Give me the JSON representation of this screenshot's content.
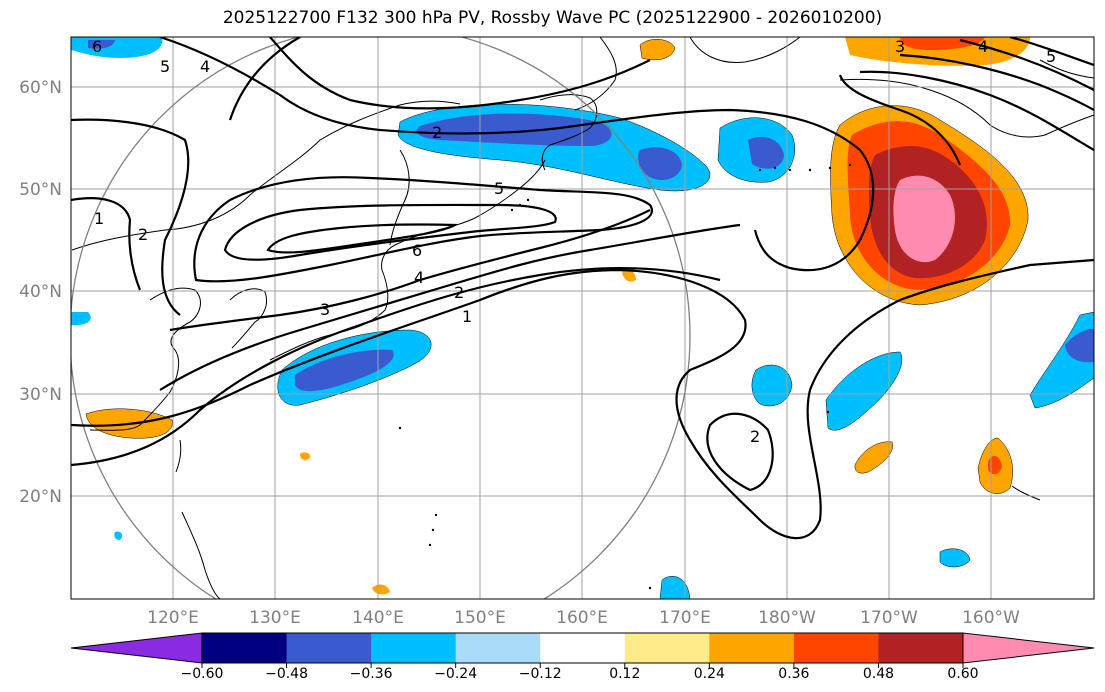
{
  "title": "2025122700 F132 300 hPa PV, Rossby Wave PC (2025122900 - 2026010200)",
  "map": {
    "lon_labels": [
      "120°E",
      "130°E",
      "140°E",
      "150°E",
      "160°E",
      "170°E",
      "180°W",
      "170°W",
      "160°W"
    ],
    "lat_labels": [
      "60°N",
      "50°N",
      "40°N",
      "30°N",
      "20°N"
    ],
    "contour_labels": [
      "6",
      "5",
      "4",
      "2",
      "1",
      "5",
      "6",
      "4",
      "3",
      "2",
      "1",
      "2",
      "2",
      "3",
      "4",
      "5"
    ]
  },
  "colorbar": {
    "ticks": [
      "−0.60",
      "−0.48",
      "−0.36",
      "−0.24",
      "−0.12",
      "0.12",
      "0.24",
      "0.36",
      "0.48",
      "0.60"
    ],
    "colors": [
      "#8a2be2",
      "#000080",
      "#3a5bd0",
      "#00bfff",
      "#a8dcf8",
      "#ffffff",
      "#ffeb8a",
      "#ffa500",
      "#ff4500",
      "#b22222",
      "#ff8cb0"
    ]
  }
}
